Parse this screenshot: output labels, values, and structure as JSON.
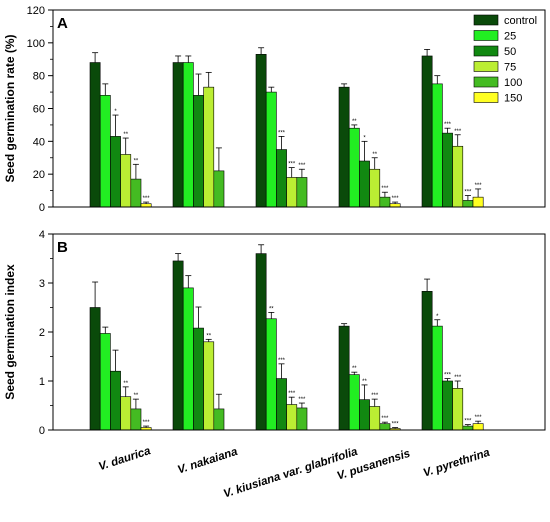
{
  "chart_data": [
    {
      "type": "bar",
      "panel_label": "A",
      "ylabel": "Seed germination rate (%)",
      "ylim": [
        0,
        120
      ],
      "yticks": [
        0,
        20,
        40,
        60,
        80,
        100,
        120
      ],
      "categories": [
        "V. daurica",
        "V. nakaiana",
        "V. kiusiana var. glabrifolia",
        "V. pusanensis",
        "V. pyrethrina"
      ],
      "legend_position": "top-right",
      "series": [
        {
          "name": "control",
          "color": "#0a4a0a",
          "values": [
            88,
            88,
            93,
            73,
            92
          ],
          "errors": [
            6,
            4,
            4,
            2,
            4
          ],
          "sig": [
            "",
            "",
            "",
            "",
            ""
          ]
        },
        {
          "name": "25",
          "color": "#22ee22",
          "values": [
            68,
            88,
            70,
            48,
            75
          ],
          "errors": [
            7,
            4,
            3,
            2,
            5
          ],
          "sig": [
            "",
            "",
            "",
            "**",
            ""
          ]
        },
        {
          "name": "50",
          "color": "#118811",
          "values": [
            43,
            68,
            35,
            28,
            45
          ],
          "errors": [
            13,
            13,
            8,
            12,
            3
          ],
          "sig": [
            "*",
            "",
            "***",
            "*",
            "***"
          ]
        },
        {
          "name": "75",
          "color": "#bbee33",
          "values": [
            32,
            73,
            18,
            23,
            37
          ],
          "errors": [
            10,
            9,
            6,
            7,
            7
          ],
          "sig": [
            "**",
            "",
            "***",
            "**",
            "***"
          ]
        },
        {
          "name": "100",
          "color": "#44bb22",
          "values": [
            17,
            22,
            18,
            6,
            4
          ],
          "errors": [
            9,
            14,
            5,
            3,
            3
          ],
          "sig": [
            "**",
            "",
            "***",
            "***",
            "***"
          ]
        },
        {
          "name": "150",
          "color": "#ffff22",
          "values": [
            2,
            0,
            0,
            2,
            6
          ],
          "errors": [
            1,
            0,
            0,
            1,
            5
          ],
          "sig": [
            "***",
            "",
            "",
            "***",
            "***"
          ]
        }
      ]
    },
    {
      "type": "bar",
      "panel_label": "B",
      "ylabel": "Seed germination index",
      "ylim": [
        0,
        4
      ],
      "yticks": [
        0,
        1,
        2,
        3,
        4
      ],
      "categories": [
        "V. daurica",
        "V. nakaiana",
        "V. kiusiana var. glabrifolia",
        "V. pusanensis",
        "V. pyrethrina"
      ],
      "series": [
        {
          "name": "control",
          "color": "#0a4a0a",
          "values": [
            2.5,
            3.45,
            3.6,
            2.12,
            2.83
          ],
          "errors": [
            0.52,
            0.15,
            0.18,
            0.05,
            0.25
          ],
          "sig": [
            "",
            "",
            "",
            "",
            ""
          ]
        },
        {
          "name": "25",
          "color": "#22ee22",
          "values": [
            1.97,
            2.9,
            2.27,
            1.13,
            2.12
          ],
          "errors": [
            0.13,
            0.25,
            0.13,
            0.05,
            0.13
          ],
          "sig": [
            "",
            "",
            "**",
            "**",
            "*"
          ]
        },
        {
          "name": "50",
          "color": "#118811",
          "values": [
            1.2,
            2.08,
            1.05,
            0.62,
            1.0
          ],
          "errors": [
            0.43,
            0.43,
            0.3,
            0.3,
            0.05
          ],
          "sig": [
            "",
            "",
            "***",
            "**",
            "***"
          ]
        },
        {
          "name": "75",
          "color": "#bbee33",
          "values": [
            0.68,
            1.8,
            0.52,
            0.48,
            0.85
          ],
          "errors": [
            0.2,
            0.05,
            0.15,
            0.15,
            0.15
          ],
          "sig": [
            "**",
            "**",
            "***",
            "***",
            "***"
          ]
        },
        {
          "name": "100",
          "color": "#44bb22",
          "values": [
            0.43,
            0.43,
            0.45,
            0.13,
            0.08
          ],
          "errors": [
            0.2,
            0.3,
            0.1,
            0.03,
            0.03
          ],
          "sig": [
            "**",
            "",
            "***",
            "***",
            "***"
          ]
        },
        {
          "name": "150",
          "color": "#ffff22",
          "values": [
            0.05,
            0,
            0,
            0.03,
            0.13
          ],
          "errors": [
            0.03,
            0,
            0,
            0.02,
            0.05
          ],
          "sig": [
            "***",
            "",
            "",
            "***",
            "***"
          ]
        }
      ]
    }
  ]
}
